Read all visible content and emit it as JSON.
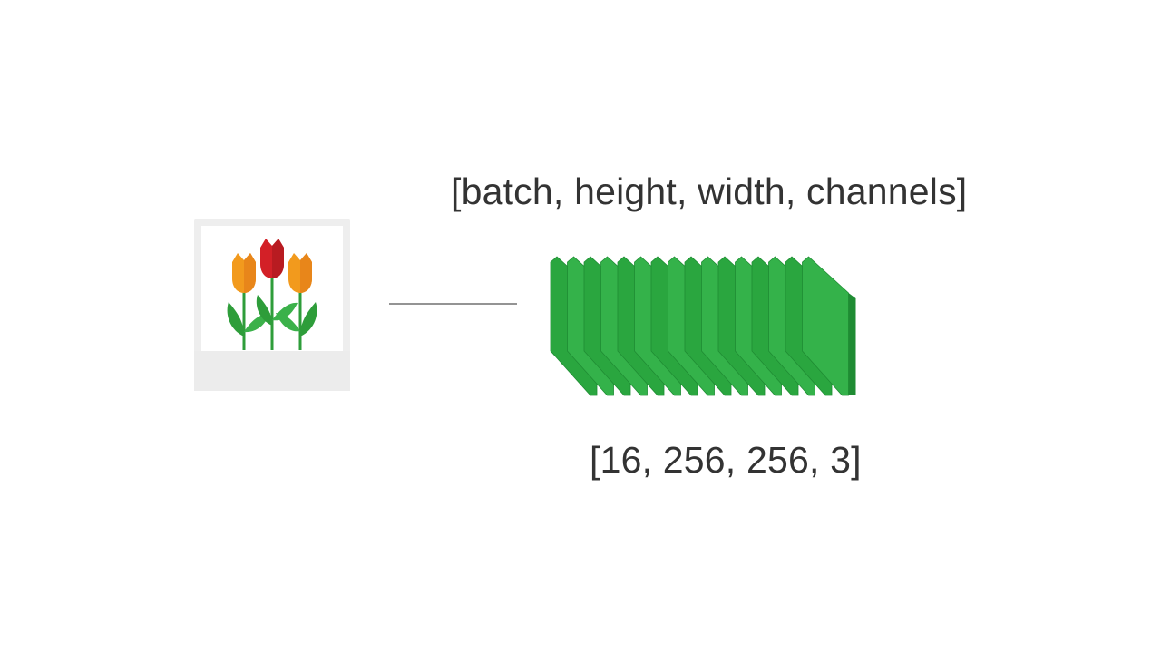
{
  "diagram": {
    "shape_label": "[batch, height, width, channels]",
    "value_label": "[16, 256, 256, 3]",
    "batch_size": 16,
    "colors": {
      "slice_front": "#2aa63f",
      "slice_edge": "#1f8c33",
      "slice_top": "#34b24a",
      "text": "#333333",
      "connector": "#555555",
      "tulip_orange": "#f29a1d",
      "tulip_red": "#d32027",
      "leaf_green": "#2e9d3a",
      "card_frame": "#eeeeee"
    },
    "image_icon": "tulips-photo-icon"
  }
}
